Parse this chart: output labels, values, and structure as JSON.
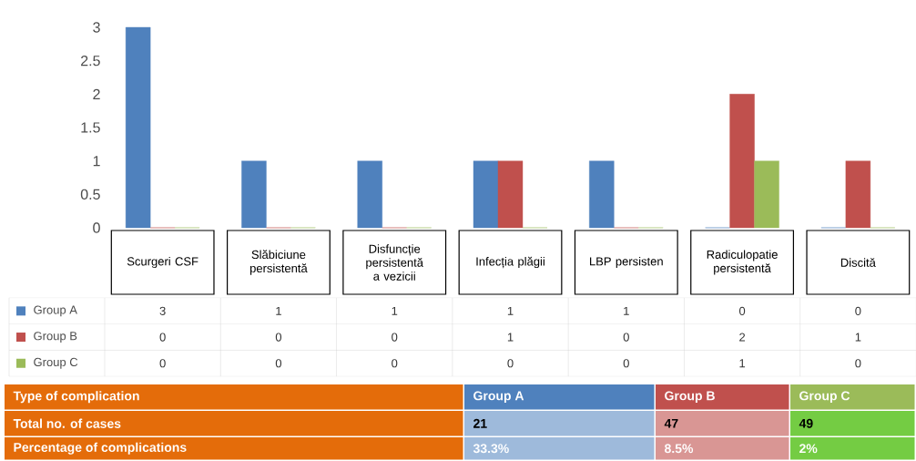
{
  "chart_data": {
    "type": "bar",
    "categories": [
      "Scurgeri CSF",
      "Slăbiciune persistentă",
      "Disfuncție persistentă a vezicii",
      "Infecția plăgii",
      "LBP persisten",
      "Radiculopatie persistentă",
      "Discită"
    ],
    "series": [
      {
        "name": "Group A",
        "color": "#4f81bd",
        "values": [
          3,
          1,
          1,
          1,
          1,
          0,
          0
        ]
      },
      {
        "name": "Group B",
        "color": "#c0504d",
        "values": [
          0,
          0,
          0,
          1,
          0,
          2,
          1
        ]
      },
      {
        "name": "Group C",
        "color": "#9bbb59",
        "values": [
          0,
          0,
          0,
          0,
          0,
          1,
          0
        ]
      }
    ],
    "ylim": [
      0,
      3
    ],
    "yticks": [
      0,
      0.5,
      1,
      1.5,
      2,
      2.5,
      3
    ],
    "legend": "bottom left",
    "data_labels": true,
    "annotations": [
      "Type of complication",
      "Group A",
      "Group B",
      "Group C",
      "Total no. of cases",
      "21",
      "47",
      "49",
      "Percentage of complications",
      "33.3%",
      "8.5%",
      "2%"
    ]
  }
}
